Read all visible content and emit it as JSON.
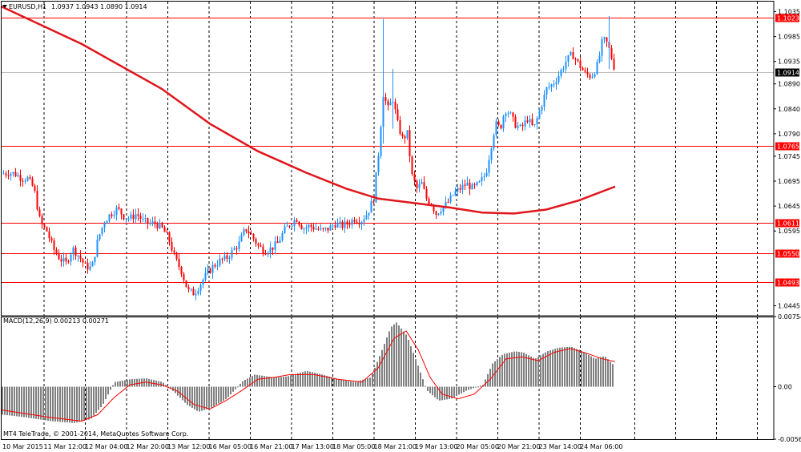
{
  "header": {
    "symbol": "EURUSD,H1",
    "quote": "1.0937 1.0943 1.0890 1.0914"
  },
  "macd_header": {
    "label": "MACD(12,26,9) 0.00213 0.00271"
  },
  "copyright": "MT4 TeleTrade, © 2001-2014, MetaQuotes Software Corp.",
  "colors": {
    "up_candle": "#1e90ff",
    "down_candle": "#ff0000",
    "ma_line": "#e0161b",
    "hline": "#ff0000",
    "macd_hist": "#808080",
    "signal": "#ff0000",
    "grid": "#000000"
  },
  "chart_data": [
    {
      "type": "candlestick",
      "title": "EURUSD,H1",
      "price_axis": {
        "ylim": [
          1.0425,
          1.1055
        ],
        "ticks": [
          "1.1035",
          "1.0985",
          "1.0935",
          "1.0890",
          "1.0840",
          "1.0790",
          "1.0745",
          "1.0695",
          "1.0645",
          "1.0595",
          "1.0445"
        ]
      },
      "time_axis": {
        "labels": [
          "10 Mar 2015",
          "11 Mar 12:00",
          "12 Mar 04:00",
          "12 Mar 20:00",
          "13 Mar 12:00",
          "16 Mar 05:00",
          "16 Mar 21:00",
          "17 Mar 13:00",
          "18 Mar 05:00",
          "18 Mar 21:00",
          "19 Mar 13:00",
          "20 Mar 05:00",
          "20 Mar 21:00",
          "23 Mar 14:00",
          "24 Mar 06:00"
        ]
      },
      "price_lines": [
        {
          "value": 1.1023,
          "label": "1.1023"
        },
        {
          "value": 1.0765,
          "label": "1.0765"
        },
        {
          "value": 1.0611,
          "label": "1.0611"
        },
        {
          "value": 1.055,
          "label": "1.0550"
        },
        {
          "value": 1.0493,
          "label": "1.0493"
        }
      ],
      "current_price": {
        "value": 1.0914,
        "label": "1.0914"
      },
      "close_path": [
        [
          0,
          1.071
        ],
        [
          8,
          1.0712
        ],
        [
          16,
          1.071
        ],
        [
          24,
          1.0702
        ],
        [
          32,
          1.07
        ],
        [
          40,
          1.068
        ],
        [
          48,
          1.061
        ],
        [
          56,
          1.0595
        ],
        [
          64,
          1.056
        ],
        [
          72,
          1.054
        ],
        [
          80,
          1.053
        ],
        [
          88,
          1.056
        ],
        [
          96,
          1.0545
        ],
        [
          104,
          1.0525
        ],
        [
          112,
          1.052
        ],
        [
          120,
          1.058
        ],
        [
          128,
          1.0615
        ],
        [
          136,
          1.063
        ],
        [
          144,
          1.064
        ],
        [
          152,
          1.0625
        ],
        [
          160,
          1.062
        ],
        [
          168,
          1.063
        ],
        [
          176,
          1.0615
        ],
        [
          184,
          1.061
        ],
        [
          192,
          1.061
        ],
        [
          200,
          1.06
        ],
        [
          208,
          1.058
        ],
        [
          216,
          1.054
        ],
        [
          224,
          1.0515
        ],
        [
          232,
          1.0475
        ],
        [
          240,
          1.047
        ],
        [
          248,
          1.049
        ],
        [
          256,
          1.051
        ],
        [
          264,
          1.0525
        ],
        [
          272,
          1.0535
        ],
        [
          280,
          1.054
        ],
        [
          288,
          1.0555
        ],
        [
          296,
          1.057
        ],
        [
          304,
          1.06
        ],
        [
          312,
          1.0585
        ],
        [
          320,
          1.0565
        ],
        [
          328,
          1.0555
        ],
        [
          336,
          1.056
        ],
        [
          344,
          1.057
        ],
        [
          352,
          1.0595
        ],
        [
          360,
          1.061
        ],
        [
          368,
          1.062
        ],
        [
          376,
          1.06
        ],
        [
          384,
          1.0605
        ],
        [
          392,
          1.06
        ],
        [
          400,
          1.0595
        ],
        [
          408,
          1.06
        ],
        [
          416,
          1.061
        ],
        [
          424,
          1.0605
        ],
        [
          432,
          1.061
        ],
        [
          440,
          1.062
        ],
        [
          448,
          1.0615
        ],
        [
          456,
          1.063
        ],
        [
          464,
          1.066
        ],
        [
          470,
          1.075
        ],
        [
          476,
          1.087
        ],
        [
          482,
          1.084
        ],
        [
          488,
          1.086
        ],
        [
          494,
          1.081
        ],
        [
          500,
          1.078
        ],
        [
          506,
          1.079
        ],
        [
          512,
          1.0705
        ],
        [
          518,
          1.068
        ],
        [
          524,
          1.069
        ],
        [
          530,
          1.066
        ],
        [
          536,
          1.065
        ],
        [
          542,
          1.063
        ],
        [
          548,
          1.064
        ],
        [
          556,
          1.065
        ],
        [
          564,
          1.067
        ],
        [
          572,
          1.068
        ],
        [
          580,
          1.069
        ],
        [
          588,
          1.068
        ],
        [
          596,
          1.069
        ],
        [
          604,
          1.071
        ],
        [
          610,
          1.076
        ],
        [
          616,
          1.081
        ],
        [
          622,
          1.08
        ],
        [
          628,
          1.084
        ],
        [
          634,
          1.083
        ],
        [
          640,
          1.081
        ],
        [
          648,
          1.08
        ],
        [
          656,
          1.082
        ],
        [
          664,
          1.08
        ],
        [
          672,
          1.084
        ],
        [
          680,
          1.088
        ],
        [
          688,
          1.089
        ],
        [
          696,
          1.091
        ],
        [
          704,
          1.0935
        ],
        [
          712,
          1.095
        ],
        [
          720,
          1.093
        ],
        [
          728,
          1.091
        ],
        [
          736,
          1.0905
        ],
        [
          744,
          1.093
        ],
        [
          750,
          1.098
        ],
        [
          756,
          1.097
        ],
        [
          762,
          1.0937
        ],
        [
          766,
          1.0914
        ]
      ],
      "spikes": [
        {
          "x": 476,
          "low": 1.077,
          "high": 1.102
        },
        {
          "x": 488,
          "low": 1.08,
          "high": 1.092
        },
        {
          "x": 758,
          "low": 1.092,
          "high": 1.1026
        }
      ],
      "ma_line": [
        [
          0,
          1.1045
        ],
        [
          100,
          1.097
        ],
        [
          200,
          1.088
        ],
        [
          260,
          1.081
        ],
        [
          320,
          1.0755
        ],
        [
          380,
          1.0712
        ],
        [
          430,
          1.068
        ],
        [
          470,
          1.066
        ],
        [
          520,
          1.065
        ],
        [
          560,
          1.0642
        ],
        [
          600,
          1.0632
        ],
        [
          640,
          1.063
        ],
        [
          680,
          1.0638
        ],
        [
          720,
          1.0656
        ],
        [
          766,
          1.0684
        ]
      ]
    },
    {
      "type": "bar",
      "title": "MACD(12,26,9) 0.00213 0.00271",
      "yaxis": {
        "ylim": [
          -0.00564,
          0.00754
        ],
        "ticks": [
          "0.00754",
          "0.00",
          "-0.00564"
        ]
      },
      "histogram_points": [
        [
          0,
          -0.003
        ],
        [
          30,
          -0.0033
        ],
        [
          60,
          -0.0037
        ],
        [
          90,
          -0.0039
        ],
        [
          110,
          -0.0035
        ],
        [
          125,
          -0.002
        ],
        [
          140,
          0.0005
        ],
        [
          160,
          0.0008
        ],
        [
          180,
          0.0009
        ],
        [
          200,
          0.0005
        ],
        [
          215,
          -0.0006
        ],
        [
          230,
          -0.0019
        ],
        [
          245,
          -0.0027
        ],
        [
          260,
          -0.0023
        ],
        [
          280,
          -0.0013
        ],
        [
          300,
          0.0006
        ],
        [
          315,
          0.0013
        ],
        [
          340,
          0.001
        ],
        [
          355,
          0.0011
        ],
        [
          380,
          0.0017
        ],
        [
          400,
          0.0013
        ],
        [
          420,
          0.0008
        ],
        [
          440,
          0.0005
        ],
        [
          460,
          0.001
        ],
        [
          472,
          0.0035
        ],
        [
          485,
          0.0064
        ],
        [
          492,
          0.0069
        ],
        [
          505,
          0.0055
        ],
        [
          518,
          0.0025
        ],
        [
          530,
          -0.0004
        ],
        [
          545,
          -0.0015
        ],
        [
          560,
          -0.0013
        ],
        [
          580,
          -0.0004
        ],
        [
          600,
          0.0002
        ],
        [
          612,
          0.0025
        ],
        [
          625,
          0.0035
        ],
        [
          640,
          0.0038
        ],
        [
          650,
          0.0037
        ],
        [
          665,
          0.003
        ],
        [
          680,
          0.0038
        ],
        [
          695,
          0.0042
        ],
        [
          710,
          0.0043
        ],
        [
          725,
          0.0038
        ],
        [
          740,
          0.003
        ],
        [
          752,
          0.0033
        ],
        [
          766,
          0.0021
        ]
      ],
      "signal_line": [
        [
          0,
          -0.0025
        ],
        [
          60,
          -0.0033
        ],
        [
          100,
          -0.0037
        ],
        [
          120,
          -0.003
        ],
        [
          140,
          -0.0012
        ],
        [
          160,
          0.0002
        ],
        [
          180,
          0.0005
        ],
        [
          200,
          0.0002
        ],
        [
          220,
          -0.0005
        ],
        [
          240,
          -0.0019
        ],
        [
          260,
          -0.0024
        ],
        [
          280,
          -0.0015
        ],
        [
          300,
          -0.0004
        ],
        [
          320,
          0.0008
        ],
        [
          340,
          0.001
        ],
        [
          360,
          0.0013
        ],
        [
          390,
          0.0013
        ],
        [
          420,
          0.0008
        ],
        [
          450,
          0.0005
        ],
        [
          470,
          0.002
        ],
        [
          490,
          0.0052
        ],
        [
          505,
          0.006
        ],
        [
          520,
          0.004
        ],
        [
          535,
          0.001
        ],
        [
          550,
          -0.0008
        ],
        [
          570,
          -0.0013
        ],
        [
          590,
          -0.0008
        ],
        [
          610,
          0.0008
        ],
        [
          630,
          0.003
        ],
        [
          650,
          0.0032
        ],
        [
          670,
          0.0028
        ],
        [
          690,
          0.0037
        ],
        [
          710,
          0.0041
        ],
        [
          730,
          0.0036
        ],
        [
          750,
          0.003
        ],
        [
          766,
          0.0027
        ]
      ]
    }
  ]
}
